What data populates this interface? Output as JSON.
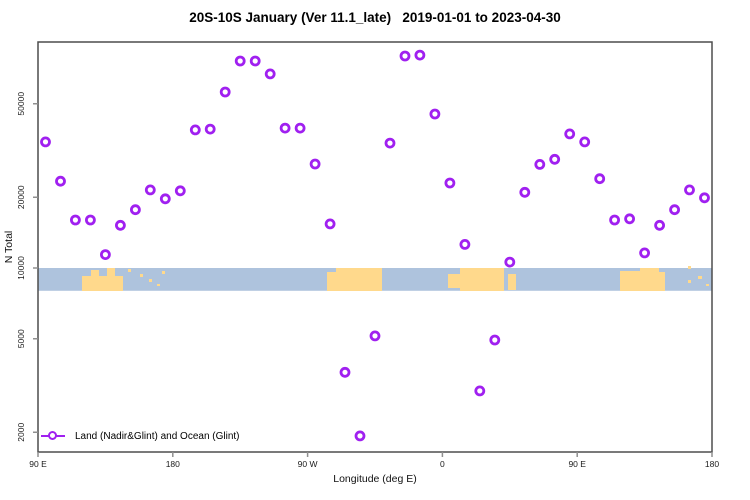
{
  "title": "20S-10S January (Ver 11.1_late)   2019-01-01 to 2023-04-30",
  "axes": {
    "x_label": "Longitude (deg E)",
    "y_label": "N Total",
    "x_ticks": [
      {
        "deg": 0,
        "label": "90 E"
      },
      {
        "deg": 90,
        "label": "180"
      },
      {
        "deg": 180,
        "label": "90 W"
      },
      {
        "deg": 270,
        "label": "0"
      },
      {
        "deg": 360,
        "label": "90 E"
      },
      {
        "deg": 450,
        "label": "180"
      }
    ],
    "y_ticks": [
      {
        "value": 50000,
        "label": "50000"
      },
      {
        "value": 20000,
        "label": "20000"
      },
      {
        "value": 10000,
        "label": "10000"
      },
      {
        "value": 5000,
        "label": "5000"
      },
      {
        "value": 2000,
        "label": "2000"
      }
    ]
  },
  "legend": {
    "label": "Land (Nadir&Glint) and Ocean (Glint)"
  },
  "colors": {
    "marker": "#A020F0",
    "ocean": "#AEC3DD",
    "land": "#FFD98C",
    "axis": "#4D4D4D",
    "tick": "#8F8F8F",
    "text": "#1A1A1A"
  },
  "chart_data": {
    "type": "scatter",
    "title": "20S-10S January (Ver 11.1_late)   2019-01-01 to 2023-04-30",
    "xlabel": "Longitude (deg E)",
    "ylabel": "N Total",
    "y_scale": "log10",
    "ylim": [
      1800,
      95000
    ],
    "x_axis_deg_span": 450,
    "x_axis_note": "axis starts at 90E and wraps eastward: 90E,180,90W,0,90E,180 (90 deg per major tick)",
    "points": [
      {
        "deg": 5,
        "lon": "95E",
        "n": 34400
      },
      {
        "deg": 15,
        "lon": "105E",
        "n": 23400
      },
      {
        "deg": 25,
        "lon": "115E",
        "n": 16000
      },
      {
        "deg": 35,
        "lon": "125E",
        "n": 16000
      },
      {
        "deg": 45,
        "lon": "135E",
        "n": 11400
      },
      {
        "deg": 55,
        "lon": "145E",
        "n": 15200
      },
      {
        "deg": 65,
        "lon": "155E",
        "n": 17700
      },
      {
        "deg": 75,
        "lon": "165E",
        "n": 21500
      },
      {
        "deg": 85,
        "lon": "175E",
        "n": 19700
      },
      {
        "deg": 95,
        "lon": "175W",
        "n": 21300
      },
      {
        "deg": 105,
        "lon": "165W",
        "n": 38700
      },
      {
        "deg": 115,
        "lon": "155W",
        "n": 39000
      },
      {
        "deg": 125,
        "lon": "145W",
        "n": 56100
      },
      {
        "deg": 135,
        "lon": "135W",
        "n": 76000
      },
      {
        "deg": 145,
        "lon": "125W",
        "n": 76000
      },
      {
        "deg": 155,
        "lon": "115W",
        "n": 67000
      },
      {
        "deg": 165,
        "lon": "105W",
        "n": 39400
      },
      {
        "deg": 175,
        "lon": "95W",
        "n": 39400
      },
      {
        "deg": 185,
        "lon": "85W",
        "n": 27700
      },
      {
        "deg": 195,
        "lon": "75W",
        "n": 15400
      },
      {
        "deg": 205,
        "lon": "65W",
        "n": 3600
      },
      {
        "deg": 215,
        "lon": "55W",
        "n": 1930
      },
      {
        "deg": 225,
        "lon": "45W",
        "n": 5140
      },
      {
        "deg": 235,
        "lon": "35W",
        "n": 34000
      },
      {
        "deg": 245,
        "lon": "25W",
        "n": 79800
      },
      {
        "deg": 255,
        "lon": "15W",
        "n": 80500
      },
      {
        "deg": 265,
        "lon": "5W",
        "n": 45200
      },
      {
        "deg": 275,
        "lon": "5E",
        "n": 23000
      },
      {
        "deg": 285,
        "lon": "15E",
        "n": 12600
      },
      {
        "deg": 295,
        "lon": "25E",
        "n": 3000
      },
      {
        "deg": 305,
        "lon": "35E",
        "n": 4940
      },
      {
        "deg": 315,
        "lon": "45E",
        "n": 10600
      },
      {
        "deg": 325,
        "lon": "55E",
        "n": 21000
      },
      {
        "deg": 335,
        "lon": "65E",
        "n": 27600
      },
      {
        "deg": 345,
        "lon": "75E",
        "n": 29000
      },
      {
        "deg": 355,
        "lon": "85E",
        "n": 37200
      },
      {
        "deg": 365,
        "lon": "95E",
        "n": 34400
      },
      {
        "deg": 375,
        "lon": "105E",
        "n": 24000
      },
      {
        "deg": 385,
        "lon": "115E",
        "n": 16000
      },
      {
        "deg": 395,
        "lon": "125E",
        "n": 16200
      },
      {
        "deg": 405,
        "lon": "135E",
        "n": 11600
      },
      {
        "deg": 415,
        "lon": "145E",
        "n": 15200
      },
      {
        "deg": 425,
        "lon": "155E",
        "n": 17700
      },
      {
        "deg": 435,
        "lon": "165E",
        "n": 21500
      },
      {
        "deg": 445,
        "lon": "175E",
        "n": 19900
      }
    ],
    "map_band": {
      "description": "land/ocean strip of latitude band 20S-10S drawn across plot between N=10000 and N=8000",
      "n_top": 10000,
      "n_bottom": 8000,
      "land_patches": [
        {
          "name": "indonesia-north-australia",
          "rects": [
            [
              82,
              276,
              41,
              15
            ],
            [
              91,
              270,
              8,
              21
            ],
            [
              107,
              268,
              8,
              23
            ]
          ]
        },
        {
          "name": "melanesia-islands",
          "rects": [
            [
              128,
              269,
              3,
              3
            ],
            [
              140,
              274,
              3,
              3
            ],
            [
              149,
              279,
              3,
              3
            ],
            [
              157,
              284,
              3,
              2
            ],
            [
              162,
              271,
              3,
              3
            ]
          ]
        },
        {
          "name": "south-america",
          "rects": [
            [
              327,
              272,
              9,
              19
            ],
            [
              336,
              268,
              46,
              23
            ]
          ]
        },
        {
          "name": "africa",
          "rects": [
            [
              448,
              274,
              12,
              14
            ],
            [
              460,
              268,
              44,
              23
            ]
          ]
        },
        {
          "name": "madagascar",
          "rects": [
            [
              508,
              274,
              8,
              16
            ]
          ]
        },
        {
          "name": "australia",
          "rects": [
            [
              620,
              271,
              20,
              20
            ],
            [
              640,
              268,
              19,
              23
            ],
            [
              659,
              272,
              6,
              19
            ]
          ]
        },
        {
          "name": "pacific-islands",
          "rects": [
            [
              688,
              266,
              3,
              3
            ],
            [
              688,
              280,
              3,
              3
            ],
            [
              698,
              276,
              4,
              3
            ],
            [
              706,
              284,
              3,
              2
            ]
          ]
        }
      ]
    }
  }
}
